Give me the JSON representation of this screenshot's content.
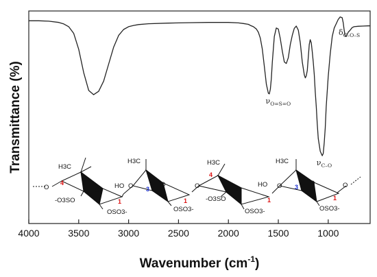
{
  "chart_data": {
    "type": "line",
    "title": "",
    "xlabel": "Wavenumber (cm",
    "xlabel_sup": "-1",
    "xlabel_close": ")",
    "ylabel": "Transmittance (%)",
    "x_reversed": true,
    "xlim": [
      4000,
      580
    ],
    "ylim": [
      0,
      100
    ],
    "y_ticks_shown": false,
    "grid": false,
    "x_ticks": [
      4000,
      3500,
      3000,
      2500,
      2000,
      1500,
      1000
    ],
    "x_tick_labels": [
      "4000",
      "3500",
      "3000",
      "2500",
      "2000",
      "1500",
      "1000"
    ],
    "series": [
      {
        "color": "#222222",
        "x": [
          4000,
          3900,
          3800,
          3700,
          3650,
          3600,
          3550,
          3500,
          3450,
          3400,
          3350,
          3300,
          3250,
          3200,
          3150,
          3100,
          3050,
          3000,
          2950,
          2900,
          2800,
          2600,
          2400,
          2200,
          2000,
          1900,
          1850,
          1800,
          1780,
          1750,
          1720,
          1700,
          1680,
          1660,
          1640,
          1620,
          1600,
          1590,
          1580,
          1570,
          1560,
          1540,
          1520,
          1500,
          1480,
          1460,
          1440,
          1420,
          1400,
          1380,
          1360,
          1340,
          1320,
          1300,
          1280,
          1260,
          1240,
          1230,
          1220,
          1210,
          1200,
          1190,
          1180,
          1170,
          1160,
          1150,
          1140,
          1130,
          1120,
          1110,
          1100,
          1080,
          1060,
          1050,
          1040,
          1030,
          1020,
          1000,
          980,
          960,
          940,
          920,
          900,
          880,
          860,
          850,
          840,
          830,
          820,
          810,
          800,
          780,
          760,
          740,
          700,
          650,
          600,
          580
        ],
        "y": [
          95.4,
          95.4,
          95.2,
          94.6,
          93.9,
          92.6,
          89.5,
          82,
          71,
          62.6,
          60.6,
          62.2,
          67,
          75,
          83,
          88.5,
          91.3,
          92.6,
          93.2,
          93.6,
          94,
          94.3,
          94.5,
          94.6,
          94.6,
          94.4,
          94.1,
          93.7,
          93.2,
          92.6,
          91.5,
          90,
          87.2,
          82,
          74,
          65.5,
          61.3,
          61,
          63.2,
          68,
          76,
          88,
          92,
          91.5,
          87,
          81,
          76,
          75.3,
          78,
          84.2,
          88.5,
          91.8,
          92.9,
          91,
          85,
          76,
          70,
          68.5,
          69.5,
          72,
          78,
          84.3,
          86.5,
          85,
          81,
          76,
          70,
          62,
          55,
          47,
          40,
          34,
          31.9,
          33,
          38,
          45,
          55,
          69,
          80,
          88,
          92,
          94,
          96,
          97.2,
          96.8,
          94.5,
          91,
          88.3,
          88,
          89,
          90,
          91,
          92.2,
          92.6,
          92.8,
          92.9,
          93,
          93
        ]
      }
    ],
    "annotations": [
      {
        "text": "ν",
        "sub": "O=S=O",
        "x": 1600,
        "y": 61
      },
      {
        "text": "ν",
        "sub": "C–O",
        "x": 1062,
        "y": 32
      },
      {
        "text": "δ",
        "sub": "C–O–S",
        "x": 855,
        "y": 88
      }
    ]
  },
  "structure_inset": {
    "labels": {
      "methyl": "H3C",
      "hydroxyl": "HO",
      "ring_o": "O",
      "sulfate_left": "-O3SO",
      "sulfate_right": "OSO3-",
      "pos_1": "1",
      "pos_3": "3",
      "pos_4": "4"
    }
  }
}
